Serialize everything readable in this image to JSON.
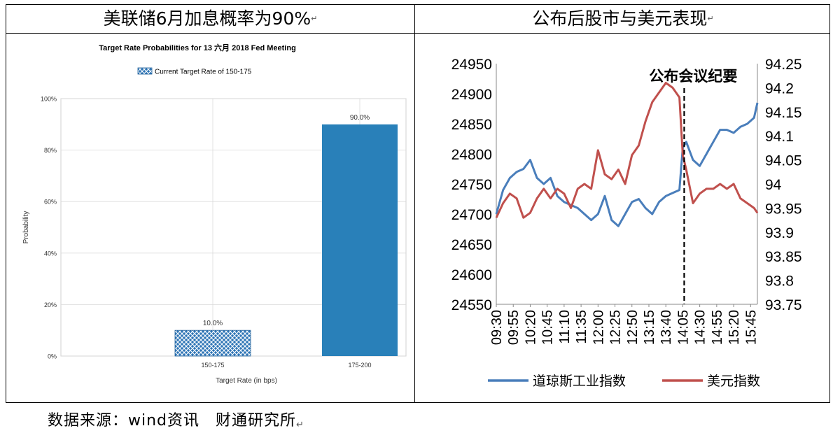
{
  "table": {
    "left_title": "美联储6月加息概率为90%",
    "right_title": "公布后股市与美元表现"
  },
  "paragraph_mark": "↵",
  "source_note": "数据来源：wind资讯　财通研究所",
  "chart_data": [
    {
      "type": "bar",
      "title": "Target Rate Probabilities for 13 六月 2018  Fed Meeting",
      "legend": [
        "Current Target Rate of 150-175"
      ],
      "legend_placement": "top",
      "categories": [
        "150-175",
        "175-200"
      ],
      "values": [
        10.0,
        90.0
      ],
      "data_labels": [
        "10.0%",
        "90.0%"
      ],
      "bar_colors": [
        "#2E75B6",
        "#2980B9"
      ],
      "hatched": [
        true,
        false
      ],
      "xlabel": "Target Rate (in bps)",
      "ylabel": "Probability",
      "ylim": [
        0,
        100
      ],
      "yticks": [
        "0%",
        "20%",
        "40%",
        "60%",
        "80%",
        "100%"
      ],
      "grid": true
    },
    {
      "type": "line",
      "annotation": "公布会议纪要",
      "annotation_x": "14:05",
      "x_ticks": [
        "09:30",
        "09:55",
        "10:20",
        "10:45",
        "11:10",
        "11:35",
        "12:00",
        "12:25",
        "12:50",
        "13:15",
        "13:40",
        "14:05",
        "14:30",
        "14:55",
        "15:20",
        "15:45"
      ],
      "x_range": [
        "09:30",
        "15:55"
      ],
      "left_axis": {
        "ylim": [
          24550,
          24950
        ],
        "ticks": [
          "24550",
          "24600",
          "24650",
          "24700",
          "24750",
          "24800",
          "24850",
          "24900",
          "24950"
        ]
      },
      "right_axis": {
        "ylim": [
          93.75,
          94.25
        ],
        "ticks": [
          "93.75",
          "93.8",
          "93.85",
          "93.9",
          "93.95",
          "94",
          "94.05",
          "94.1",
          "94.15",
          "94.2",
          "94.25"
        ]
      },
      "legend_placement": "bottom",
      "series": [
        {
          "name": "道琼斯工业指数",
          "axis": "left",
          "color": "#4A7EBB",
          "x": [
            "09:30",
            "09:40",
            "09:50",
            "10:00",
            "10:10",
            "10:20",
            "10:30",
            "10:40",
            "10:50",
            "11:00",
            "11:10",
            "11:20",
            "11:30",
            "11:40",
            "11:50",
            "12:00",
            "12:10",
            "12:20",
            "12:30",
            "12:40",
            "12:50",
            "13:00",
            "13:10",
            "13:20",
            "13:30",
            "13:40",
            "13:50",
            "14:00",
            "14:05",
            "14:10",
            "14:20",
            "14:30",
            "14:40",
            "14:50",
            "15:00",
            "15:10",
            "15:20",
            "15:30",
            "15:40",
            "15:50",
            "15:55"
          ],
          "values": [
            24700,
            24740,
            24760,
            24770,
            24775,
            24790,
            24760,
            24750,
            24760,
            24730,
            24720,
            24715,
            24710,
            24700,
            24690,
            24700,
            24730,
            24690,
            24680,
            24700,
            24720,
            24725,
            24710,
            24700,
            24720,
            24730,
            24735,
            24740,
            24810,
            24820,
            24790,
            24780,
            24800,
            24820,
            24840,
            24840,
            24835,
            24845,
            24850,
            24860,
            24885
          ]
        },
        {
          "name": "美元指数",
          "axis": "right",
          "color": "#C0504D",
          "x": [
            "09:30",
            "09:40",
            "09:50",
            "10:00",
            "10:10",
            "10:20",
            "10:30",
            "10:40",
            "10:50",
            "11:00",
            "11:10",
            "11:20",
            "11:30",
            "11:40",
            "11:50",
            "12:00",
            "12:10",
            "12:20",
            "12:30",
            "12:40",
            "12:50",
            "13:00",
            "13:10",
            "13:20",
            "13:30",
            "13:40",
            "13:50",
            "14:00",
            "14:05",
            "14:10",
            "14:20",
            "14:30",
            "14:40",
            "14:50",
            "15:00",
            "15:10",
            "15:20",
            "15:30",
            "15:40",
            "15:50",
            "15:55"
          ],
          "values": [
            93.93,
            93.96,
            93.98,
            93.97,
            93.93,
            93.94,
            93.97,
            93.99,
            93.97,
            93.99,
            93.98,
            93.95,
            93.99,
            94.0,
            93.99,
            94.07,
            94.02,
            94.01,
            94.03,
            94.0,
            94.06,
            94.08,
            94.13,
            94.17,
            94.19,
            94.21,
            94.2,
            94.18,
            94.06,
            94.03,
            93.96,
            93.98,
            93.99,
            93.99,
            94.0,
            93.99,
            94.0,
            93.97,
            93.96,
            93.95,
            93.94
          ]
        }
      ]
    }
  ]
}
